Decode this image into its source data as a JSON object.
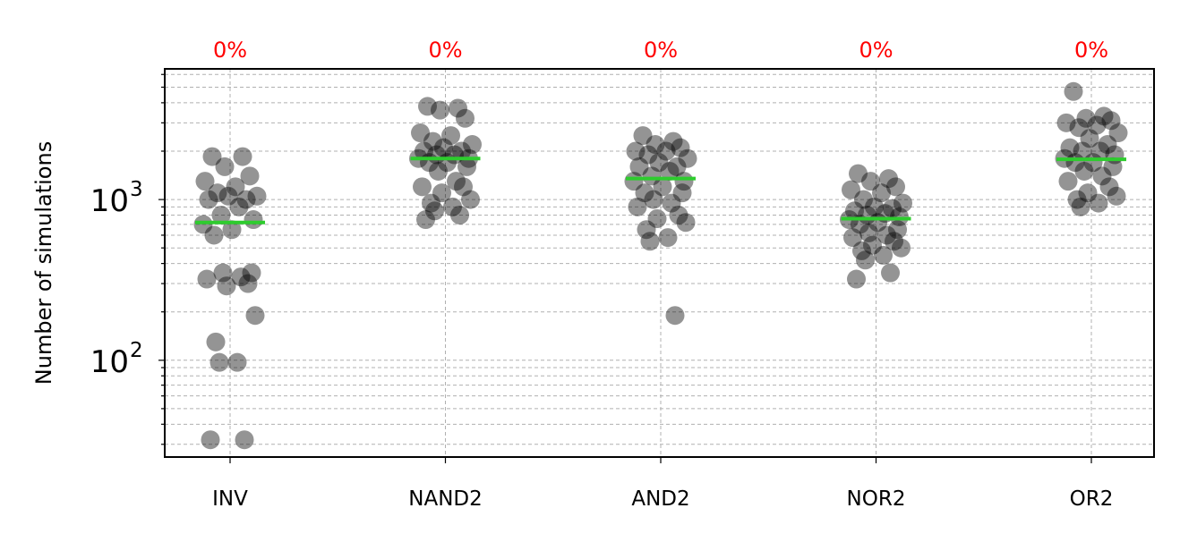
{
  "chart_data": {
    "type": "scatter",
    "xlabel": "",
    "ylabel": "Number of simulations",
    "yscale": "log",
    "ylim": [
      25,
      6500
    ],
    "grid": true,
    "categories": [
      "INV",
      "NAND2",
      "AND2",
      "NOR2",
      "OR2"
    ],
    "annotations": [
      "0%",
      "0%",
      "0%",
      "0%",
      "0%"
    ],
    "y_ticks": [
      {
        "base": "10",
        "exp": "2",
        "value": 100
      },
      {
        "base": "10",
        "exp": "3",
        "value": 1000
      }
    ],
    "medians": [
      720,
      1800,
      1350,
      760,
      1780
    ],
    "series": [
      {
        "category": "INV",
        "values": [
          1850,
          1850,
          1600,
          1400,
          1300,
          1200,
          1100,
          1050,
          1050,
          1000,
          1000,
          900,
          800,
          750,
          700,
          650,
          600,
          350,
          350,
          330,
          320,
          300,
          290,
          190,
          130,
          97,
          97,
          32,
          32
        ]
      },
      {
        "category": "NAND2",
        "values": [
          3800,
          3700,
          3600,
          3200,
          2600,
          2500,
          2300,
          2200,
          2100,
          2000,
          2000,
          1900,
          1900,
          1800,
          1800,
          1700,
          1700,
          1600,
          1500,
          1300,
          1200,
          1200,
          1100,
          1000,
          950,
          900,
          850,
          800,
          750
        ]
      },
      {
        "category": "AND2",
        "values": [
          2500,
          2300,
          2200,
          2100,
          2000,
          2000,
          1900,
          1800,
          1700,
          1600,
          1600,
          1500,
          1400,
          1300,
          1300,
          1200,
          1100,
          1100,
          1000,
          950,
          900,
          800,
          760,
          720,
          650,
          580,
          550,
          190
        ]
      },
      {
        "category": "NOR2",
        "values": [
          1450,
          1350,
          1300,
          1200,
          1150,
          1100,
          1000,
          950,
          900,
          880,
          850,
          820,
          800,
          780,
          750,
          720,
          700,
          650,
          620,
          600,
          580,
          550,
          520,
          500,
          480,
          450,
          420,
          350,
          320
        ]
      },
      {
        "category": "OR2",
        "values": [
          4700,
          3300,
          3200,
          3100,
          3000,
          2900,
          2800,
          2600,
          2400,
          2200,
          2100,
          2000,
          2000,
          1900,
          1800,
          1700,
          1700,
          1600,
          1500,
          1400,
          1300,
          1200,
          1100,
          1050,
          1000,
          950,
          900
        ]
      }
    ]
  }
}
